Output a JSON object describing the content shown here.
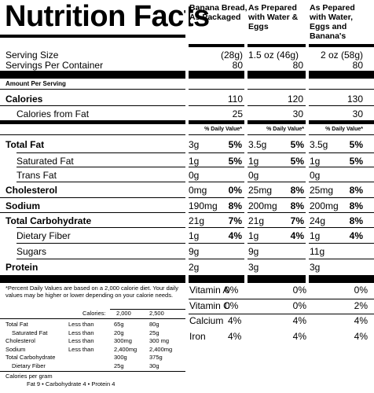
{
  "title": "Nutrition Facts",
  "columns": [
    {
      "header": "Banana Bread, As Packaged"
    },
    {
      "header": "As Prepared with Water & Eggs"
    },
    {
      "header": "As Pepared with Water, Eggs and Banana's"
    }
  ],
  "serving_size": {
    "label": "Serving Size",
    "values": [
      "(28g)",
      "1.5 oz (46g)",
      "2 oz (58g)"
    ]
  },
  "servings_per_container": {
    "label": "Servings Per Container",
    "values": [
      "80",
      "80",
      "80"
    ]
  },
  "amount_per_serving": "Amount Per Serving",
  "calories": {
    "label": "Calories",
    "values": [
      "110",
      "120",
      "130"
    ]
  },
  "calories_from_fat": {
    "label": "Calories from Fat",
    "values": [
      "25",
      "30",
      "30"
    ]
  },
  "dv_header": "% Daily Value*",
  "nutrients": [
    {
      "label": "Total Fat",
      "bold": true,
      "indent": false,
      "cols": [
        {
          "amt": "3g",
          "pct": "5%"
        },
        {
          "amt": "3.5g",
          "pct": "5%"
        },
        {
          "amt": "3.5g",
          "pct": "5%"
        }
      ]
    },
    {
      "label": "Saturated Fat",
      "bold": false,
      "indent": true,
      "cols": [
        {
          "amt": "1g",
          "pct": "5%"
        },
        {
          "amt": "1g",
          "pct": "5%"
        },
        {
          "amt": "1g",
          "pct": "5%"
        }
      ]
    },
    {
      "label": "Trans Fat",
      "bold": false,
      "indent": true,
      "cols": [
        {
          "amt": "0g",
          "pct": ""
        },
        {
          "amt": "0g",
          "pct": ""
        },
        {
          "amt": "0g",
          "pct": ""
        }
      ]
    },
    {
      "label": "Cholesterol",
      "bold": true,
      "indent": false,
      "cols": [
        {
          "amt": "0mg",
          "pct": "0%"
        },
        {
          "amt": "25mg",
          "pct": "8%"
        },
        {
          "amt": "25mg",
          "pct": "8%"
        }
      ]
    },
    {
      "label": "Sodium",
      "bold": true,
      "indent": false,
      "cols": [
        {
          "amt": "190mg",
          "pct": "8%"
        },
        {
          "amt": "200mg",
          "pct": "8%"
        },
        {
          "amt": "200mg",
          "pct": "8%"
        }
      ]
    },
    {
      "label": "Total Carbohydrate",
      "bold": true,
      "indent": false,
      "cols": [
        {
          "amt": "21g",
          "pct": "7%"
        },
        {
          "amt": "21g",
          "pct": "7%"
        },
        {
          "amt": "24g",
          "pct": "8%"
        }
      ]
    },
    {
      "label": "Dietary Fiber",
      "bold": false,
      "indent": true,
      "cols": [
        {
          "amt": "1g",
          "pct": "4%"
        },
        {
          "amt": "1g",
          "pct": "4%"
        },
        {
          "amt": "1g",
          "pct": "4%"
        }
      ]
    },
    {
      "label": "Sugars",
      "bold": false,
      "indent": true,
      "cols": [
        {
          "amt": "9g",
          "pct": ""
        },
        {
          "amt": "9g",
          "pct": ""
        },
        {
          "amt": "11g",
          "pct": ""
        }
      ]
    },
    {
      "label": "Protein",
      "bold": true,
      "indent": false,
      "cols": [
        {
          "amt": "2g",
          "pct": ""
        },
        {
          "amt": "3g",
          "pct": ""
        },
        {
          "amt": "3g",
          "pct": ""
        }
      ]
    }
  ],
  "vitamins": [
    {
      "label": "Vitamin A",
      "first": "0%",
      "values": [
        "0%",
        "0%"
      ]
    },
    {
      "label": "Vitamin C",
      "first": "0%",
      "values": [
        "0%",
        "2%"
      ]
    },
    {
      "label": "Calcium",
      "first": "4%",
      "values": [
        "4%",
        "4%"
      ]
    },
    {
      "label": "Iron",
      "first": "4%",
      "values": [
        "4%",
        "4%"
      ]
    }
  ],
  "footnote": "*Percent Daily Values are based on a 2,000 calorie diet. Your daily values may be higher or lower depending on your calorie needs.",
  "ref_table": {
    "header": [
      "",
      "Calories:",
      "2,000",
      "2,500"
    ],
    "rows": [
      [
        "Total Fat",
        "Less than",
        "65g",
        "80g"
      ],
      [
        "Saturated Fat",
        "Less than",
        "20g",
        "25g"
      ],
      [
        "Cholesterol",
        "Less than",
        "300mg",
        "300 mg"
      ],
      [
        "Sodium",
        "Less than",
        "2,400mg",
        "2,400mg"
      ],
      [
        "Total Carbohydrate",
        "",
        "300g",
        "375g"
      ],
      [
        "Dietary Fiber",
        "",
        "25g",
        "30g"
      ]
    ]
  },
  "calories_per_gram_label": "Calories per gram",
  "calories_per_gram": "Fat 9  •  Carbohydrate 4  •  Protein 4"
}
